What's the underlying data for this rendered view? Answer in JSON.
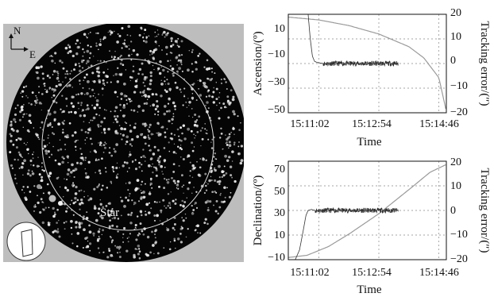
{
  "skymap": {
    "north_label": "N",
    "east_label": "E",
    "star_label": "Star",
    "colors": {
      "background": "#bdbdbd",
      "sky": "#050505",
      "stars": "#e8e8e8"
    }
  },
  "chart_data": [
    {
      "type": "line",
      "xlabel": "Time",
      "ylabel": "Ascension/(º)",
      "y2label": "Tracking error/(″)",
      "xticks": [
        "15:11:02",
        "15:12:54",
        "15:14:46"
      ],
      "xlim": [
        "15:10:05",
        "15:15:00"
      ],
      "ylim": [
        -50,
        20
      ],
      "yticks": [
        "10",
        "−10",
        "−30",
        "−50"
      ],
      "y2lim": [
        -20,
        20
      ],
      "y2ticks": [
        "20",
        "10",
        "0",
        "−10",
        "−20"
      ],
      "grid": true,
      "series": [
        {
          "role": "position",
          "axis": "left",
          "color": "#9a9a9a",
          "x": [
            "15:10:05",
            "15:11:02",
            "15:11:58",
            "15:12:54",
            "15:13:50",
            "15:14:18",
            "15:14:46",
            "15:15:00"
          ],
          "y": [
            18.0,
            16.0,
            12.0,
            6.0,
            -3.0,
            -11.0,
            -25.0,
            -49.0
          ]
        },
        {
          "role": "tracking-error",
          "axis": "right",
          "color": "#333333",
          "x": [
            "15:10:42",
            "15:10:46",
            "15:10:50",
            "15:10:54",
            "15:10:58",
            "15:11:02",
            "15:11:10",
            "15:13:30"
          ],
          "y": [
            20.0,
            10.0,
            3.0,
            0.9,
            0.5,
            0.3,
            0.0,
            0.0
          ],
          "noise_amplitude": 1.0
        }
      ]
    },
    {
      "type": "line",
      "xlabel": "Time",
      "ylabel": "Declination/(º)",
      "y2label": "Tracking error/(″)",
      "xticks": [
        "15:11:02",
        "15:12:54",
        "15:14:46"
      ],
      "xlim": [
        "15:10:05",
        "15:15:00"
      ],
      "ylim": [
        -12,
        78
      ],
      "yticks": [
        "70",
        "50",
        "30",
        "10",
        "−10"
      ],
      "y2lim": [
        -20,
        20
      ],
      "y2ticks": [
        "20",
        "10",
        "0",
        "−10",
        "−20"
      ],
      "grid": true,
      "series": [
        {
          "role": "position",
          "axis": "left",
          "color": "#9a9a9a",
          "x": [
            "15:10:05",
            "15:10:40",
            "15:11:20",
            "15:12:00",
            "15:12:54",
            "15:13:50",
            "15:14:30",
            "15:15:00"
          ],
          "y": [
            -10.0,
            -8.0,
            0.0,
            12.0,
            30.0,
            52.0,
            68.0,
            75.0
          ]
        },
        {
          "role": "tracking-error",
          "axis": "right",
          "color": "#333333",
          "x": [
            "15:10:18",
            "15:10:26",
            "15:10:33",
            "15:10:38",
            "15:10:42",
            "15:10:48",
            "15:10:55",
            "15:13:30"
          ],
          "y": [
            -20.0,
            -16.0,
            -8.0,
            -2.0,
            0.0,
            0.4,
            0.0,
            0.0
          ],
          "noise_amplitude": 1.0
        }
      ]
    }
  ]
}
